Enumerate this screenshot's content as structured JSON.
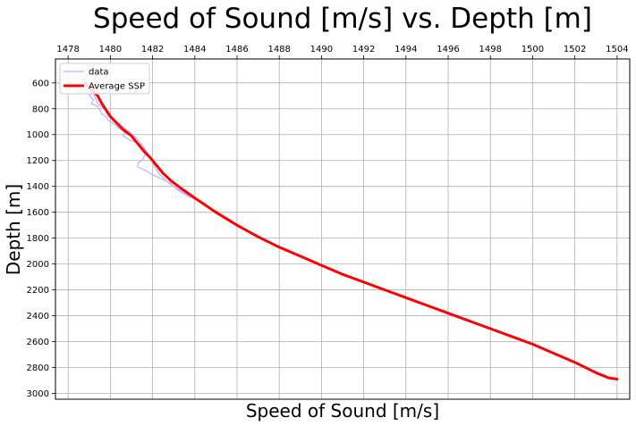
{
  "chart_data": {
    "type": "line",
    "title": "Speed of Sound [m/s] vs. Depth [m]",
    "xlabel": "Speed of Sound [m/s]",
    "ylabel": "Depth [m]",
    "xlim": [
      1477.4,
      1504.6
    ],
    "ylim": [
      3045,
      415
    ],
    "x_axis_position": "top",
    "y_inverted": true,
    "grid": true,
    "legend_position": "top-left",
    "xticks": [
      1478,
      1480,
      1482,
      1484,
      1486,
      1488,
      1490,
      1492,
      1494,
      1496,
      1498,
      1500,
      1502,
      1504
    ],
    "yticks": [
      600,
      800,
      1000,
      1200,
      1400,
      1600,
      1800,
      2000,
      2200,
      2400,
      2600,
      2800,
      3000
    ],
    "series": [
      {
        "name": "data",
        "color": "#b3b3ff",
        "width": 1.2,
        "points": [
          [
            1478.7,
            560
          ],
          [
            1478.9,
            590
          ],
          [
            1479.0,
            620
          ],
          [
            1478.9,
            650
          ],
          [
            1479.1,
            680
          ],
          [
            1479.0,
            700
          ],
          [
            1479.2,
            730
          ],
          [
            1479.1,
            760
          ],
          [
            1479.4,
            780
          ],
          [
            1479.5,
            810
          ],
          [
            1479.6,
            840
          ],
          [
            1479.8,
            860
          ],
          [
            1479.9,
            890
          ],
          [
            1480.2,
            920
          ],
          [
            1480.4,
            950
          ],
          [
            1480.7,
            980
          ],
          [
            1480.6,
            1010
          ],
          [
            1480.9,
            1040
          ],
          [
            1481.2,
            1060
          ],
          [
            1481.5,
            1080
          ],
          [
            1481.6,
            1110
          ],
          [
            1481.7,
            1140
          ],
          [
            1481.6,
            1170
          ],
          [
            1481.5,
            1200
          ],
          [
            1481.3,
            1220
          ],
          [
            1481.3,
            1250
          ],
          [
            1481.7,
            1280
          ],
          [
            1482.0,
            1310
          ],
          [
            1482.4,
            1340
          ],
          [
            1482.8,
            1370
          ],
          [
            1483.0,
            1400
          ],
          [
            1483.2,
            1430
          ],
          [
            1483.6,
            1470
          ],
          [
            1484.0,
            1500
          ]
        ]
      },
      {
        "name": "data",
        "color": "#b3b3ff",
        "width": 1.2,
        "points": [
          [
            1478.9,
            600
          ],
          [
            1479.0,
            640
          ],
          [
            1479.2,
            680
          ],
          [
            1479.3,
            720
          ],
          [
            1479.4,
            760
          ],
          [
            1479.7,
            800
          ],
          [
            1479.9,
            850
          ],
          [
            1480.3,
            900
          ],
          [
            1480.6,
            940
          ],
          [
            1480.9,
            980
          ],
          [
            1481.2,
            1020
          ],
          [
            1481.4,
            1060
          ],
          [
            1481.6,
            1100
          ],
          [
            1481.8,
            1150
          ],
          [
            1482.0,
            1200
          ],
          [
            1482.1,
            1250
          ],
          [
            1482.3,
            1300
          ],
          [
            1482.6,
            1350
          ],
          [
            1482.9,
            1390
          ],
          [
            1483.3,
            1430
          ],
          [
            1483.7,
            1470
          ],
          [
            1484.0,
            1500
          ]
        ]
      },
      {
        "name": "Average SSP",
        "color": "#ff0000",
        "width": 3,
        "points": [
          [
            1478.8,
            600
          ],
          [
            1479.1,
            650
          ],
          [
            1479.4,
            700
          ],
          [
            1479.6,
            760
          ],
          [
            1479.8,
            810
          ],
          [
            1480.0,
            860
          ],
          [
            1480.3,
            910
          ],
          [
            1480.6,
            960
          ],
          [
            1481.0,
            1010
          ],
          [
            1481.3,
            1070
          ],
          [
            1481.6,
            1130
          ],
          [
            1481.9,
            1180
          ],
          [
            1482.2,
            1240
          ],
          [
            1482.5,
            1300
          ],
          [
            1482.9,
            1360
          ],
          [
            1483.3,
            1410
          ],
          [
            1484.0,
            1490
          ],
          [
            1485.0,
            1600
          ],
          [
            1486.0,
            1700
          ],
          [
            1487.0,
            1790
          ],
          [
            1488.0,
            1870
          ],
          [
            1489.0,
            1940
          ],
          [
            1490.0,
            2010
          ],
          [
            1491.0,
            2080
          ],
          [
            1492.0,
            2140
          ],
          [
            1493.0,
            2200
          ],
          [
            1494.0,
            2260
          ],
          [
            1495.0,
            2320
          ],
          [
            1496.0,
            2380
          ],
          [
            1497.0,
            2440
          ],
          [
            1498.0,
            2500
          ],
          [
            1499.0,
            2560
          ],
          [
            1500.0,
            2620
          ],
          [
            1501.0,
            2690
          ],
          [
            1502.0,
            2760
          ],
          [
            1502.5,
            2800
          ],
          [
            1503.0,
            2840
          ],
          [
            1503.6,
            2880
          ],
          [
            1504.0,
            2890
          ]
        ]
      }
    ],
    "legend": [
      {
        "label": "data",
        "color": "#b3b3ff",
        "width": 1.2
      },
      {
        "label": "Average SSP",
        "color": "#ff0000",
        "width": 3
      }
    ]
  }
}
